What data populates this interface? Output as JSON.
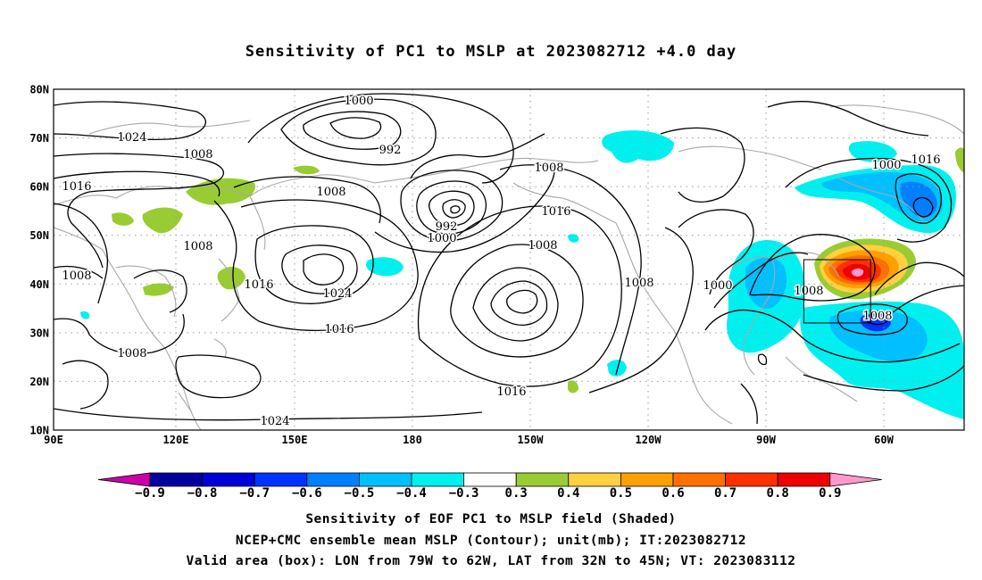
{
  "title": "Sensitivity of PC1 to MSLP at 2023082712 +4.0 day",
  "lat_labels": [
    "80N",
    "70N",
    "60N",
    "50N",
    "40N",
    "30N",
    "20N",
    "10N"
  ],
  "lon_labels": [
    "90E",
    "120E",
    "150E",
    "180",
    "150W",
    "120W",
    "90W",
    "60W"
  ],
  "contour_labels": [
    "1024",
    "1008",
    "1016",
    "1008",
    "1008",
    "1016",
    "1024",
    "1000",
    "992",
    "992",
    "1000",
    "1008",
    "1008",
    "1016",
    "1024",
    "1016",
    "1008",
    "1016",
    "1008",
    "1008",
    "1000",
    "1000",
    "1016",
    "1008",
    "1008",
    "1008"
  ],
  "colorbar": {
    "labels": [
      "-0.9",
      "-0.8",
      "-0.7",
      "-0.6",
      "-0.5",
      "-0.4",
      "-0.3",
      "0.3",
      "0.4",
      "0.5",
      "0.6",
      "0.7",
      "0.8",
      "0.9"
    ],
    "colors": [
      "#0000a0",
      "#0000d8",
      "#0033ff",
      "#0080ff",
      "#00c0ff",
      "#00f0f0",
      "#ffffff",
      "#99cc33",
      "#ffd040",
      "#ffa000",
      "#ff7000",
      "#ff3000",
      "#ee0000"
    ],
    "low_end_color": "#cc00aa",
    "high_end_color": "#ff99cc"
  },
  "captions": {
    "line1": "Sensitivity of EOF PC1 to MSLP field (Shaded)",
    "line2": "NCEP+CMC ensemble mean MSLP (Contour); unit(mb); IT:2023082712",
    "line3": "Valid area (box): LON from 79W to 62W, LAT from 32N to 45N; VT: 2023083112"
  },
  "valid_box": {
    "lon_min": -79,
    "lon_max": -62,
    "lat_min": 32,
    "lat_max": 45
  }
}
